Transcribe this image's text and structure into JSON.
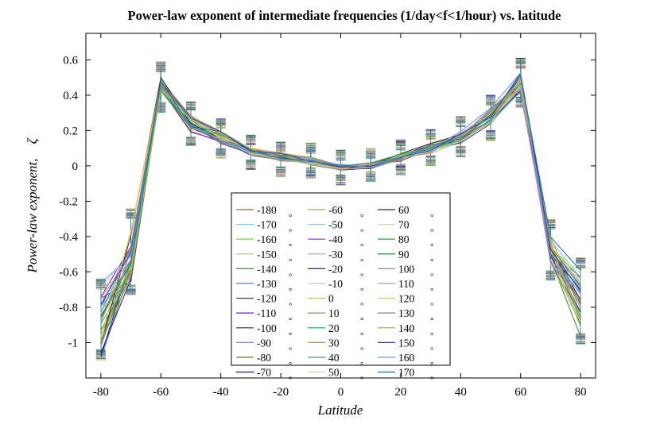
{
  "chart_data": {
    "type": "line",
    "title": "Power-law exponent of intermediate frequencies (1/day<f<1/hour) vs. latitude",
    "xlabel": "Latitude",
    "ylabel": "Power-law exponent,",
    "ylabel_symbol": "ζ",
    "xlim": [
      -85,
      85
    ],
    "ylim": [
      -1.2,
      0.75
    ],
    "xticks": [
      -80,
      -60,
      -40,
      -20,
      0,
      20,
      40,
      60,
      80
    ],
    "yticks": [
      -1,
      -0.8,
      -0.6,
      -0.4,
      -0.2,
      0,
      0.2,
      0.4,
      0.6
    ],
    "grid": false,
    "legend_position": "lower-center",
    "legend_degree_symbol": "°",
    "x": [
      -80,
      -70,
      -60,
      -50,
      -40,
      -30,
      -20,
      -10,
      0,
      10,
      20,
      30,
      40,
      50,
      60,
      70,
      80
    ],
    "base_mean": [
      -0.88,
      -0.52,
      0.45,
      0.24,
      0.16,
      0.08,
      0.05,
      0.03,
      -0.01,
      0.0,
      0.05,
      0.1,
      0.16,
      0.28,
      0.47,
      -0.5,
      -0.78
    ],
    "errorbar_upper": [
      -0.67,
      -0.27,
      0.56,
      0.34,
      0.24,
      0.15,
      0.11,
      0.1,
      0.06,
      0.07,
      0.12,
      0.18,
      0.25,
      0.37,
      0.58,
      -0.33,
      -0.55
    ],
    "errorbar_lower": [
      -1.07,
      -0.7,
      0.33,
      0.14,
      0.07,
      0.01,
      -0.03,
      -0.04,
      -0.08,
      -0.06,
      -0.02,
      0.03,
      0.08,
      0.17,
      0.36,
      -0.62,
      -0.98
    ],
    "series": [
      {
        "name": "-180",
        "color": "#8c6a52"
      },
      {
        "name": "-170",
        "color": "#66d9e8"
      },
      {
        "name": "-160",
        "color": "#7ed957"
      },
      {
        "name": "-150",
        "color": "#c9c0a8"
      },
      {
        "name": "-140",
        "color": "#4f8a3c"
      },
      {
        "name": "-130",
        "color": "#5b7fc9"
      },
      {
        "name": "-120",
        "color": "#2f4a2f"
      },
      {
        "name": "-110",
        "color": "#7a2fa8"
      },
      {
        "name": "-100",
        "color": "#555555"
      },
      {
        "name": "-90",
        "color": "#a06ee0"
      },
      {
        "name": "-80",
        "color": "#6b7a2c"
      },
      {
        "name": "-70",
        "color": "#2a1c7a"
      },
      {
        "name": "-60",
        "color": "#b89a6a"
      },
      {
        "name": "-50",
        "color": "#7ad4e8"
      },
      {
        "name": "-40",
        "color": "#9a58c4"
      },
      {
        "name": "-30",
        "color": "#a9b3e6"
      },
      {
        "name": "-20",
        "color": "#1f2a9a"
      },
      {
        "name": "-10",
        "color": "#c7bde0"
      },
      {
        "name": "0",
        "color": "#c9c24a"
      },
      {
        "name": "10",
        "color": "#b58a5a"
      },
      {
        "name": "20",
        "color": "#2fbf8f"
      },
      {
        "name": "30",
        "color": "#a89a3a"
      },
      {
        "name": "40",
        "color": "#3fa0a8"
      },
      {
        "name": "50",
        "color": "#d8cfa8"
      },
      {
        "name": "60",
        "color": "#2b2b2b"
      },
      {
        "name": "70",
        "color": "#d9d2a0"
      },
      {
        "name": "80",
        "color": "#3cae3c"
      },
      {
        "name": "90",
        "color": "#2e9e5a"
      },
      {
        "name": "100",
        "color": "#a08a78"
      },
      {
        "name": "110",
        "color": "#b78ad6"
      },
      {
        "name": "120",
        "color": "#e8c24a"
      },
      {
        "name": "130",
        "color": "#8a8a8a"
      },
      {
        "name": "140",
        "color": "#b8b06a"
      },
      {
        "name": "150",
        "color": "#3a3ab8"
      },
      {
        "name": "160",
        "color": "#6a9ad4"
      },
      {
        "name": "170",
        "color": "#1f7a8a"
      }
    ]
  }
}
